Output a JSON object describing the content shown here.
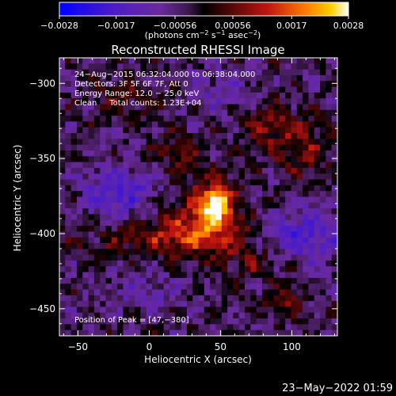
{
  "chart_data": {
    "type": "heatmap",
    "title": "Reconstructed RHESSI Image",
    "xlabel": "Heliocentric X (arcsec)",
    "ylabel": "Heliocentric Y (arcsec)",
    "xlim": [
      -63,
      132
    ],
    "ylim": [
      -468,
      -283
    ],
    "x_ticks": [
      -50,
      0,
      50,
      100
    ],
    "y_ticks": [
      -300,
      -350,
      -400,
      -450
    ],
    "x_tick_labels": [
      "−50",
      "0",
      "50",
      "100"
    ],
    "y_tick_labels": [
      "−300",
      "−350",
      "−400",
      "−450"
    ],
    "colorbar": {
      "range": [
        -0.0028,
        0.0028
      ],
      "ticks": [
        -0.0028,
        -0.0017,
        -0.00056,
        0.00056,
        0.0017,
        0.0028
      ],
      "tick_labels": [
        "−0.0028",
        "−0.0017",
        "−0.00056",
        "0.00056",
        "0.0017",
        "0.0028"
      ],
      "unit_main": "(photons cm",
      "unit_exp1": "−2",
      "unit_mid": " s",
      "unit_exp2": "−1",
      "unit_tail": " asec",
      "unit_exp3": "−2",
      "unit_close": ")"
    },
    "annotations": [
      "24−Aug−2015 06:32:04.000 to 06:38:04.000",
      "Detectors: 3F 5F 6F 7F, Att 0",
      "Energy Range: 12.0 − 25.0 keV",
      "Clean     Total counts: 1.23E+04"
    ],
    "peak_label": "Position of Peak = [47,−380]",
    "peak": {
      "x": 47,
      "y": -380,
      "value": 0.0028
    },
    "features": [
      {
        "kind": "peak",
        "x": 47,
        "y": -380,
        "sx": 6,
        "sy": 7,
        "value": 0.0028
      },
      {
        "kind": "halo",
        "x": 42,
        "y": -385,
        "sx": 16,
        "sy": 16,
        "value": 0.0014
      },
      {
        "kind": "ridge",
        "x": 30,
        "y": -398,
        "sx": 28,
        "sy": 9,
        "value": 0.0009
      },
      {
        "kind": "ridge",
        "x": 5,
        "y": -405,
        "sx": 40,
        "sy": 8,
        "value": 0.0007
      },
      {
        "kind": "ridge",
        "x": 20,
        "y": -345,
        "sx": 12,
        "sy": 10,
        "value": 0.0008
      },
      {
        "kind": "ridge",
        "x": 85,
        "y": -330,
        "sx": 14,
        "sy": 12,
        "value": 0.001
      },
      {
        "kind": "ridge",
        "x": 110,
        "y": -345,
        "sx": 12,
        "sy": 14,
        "value": 0.0009
      },
      {
        "kind": "ridge",
        "x": 75,
        "y": -420,
        "sx": 18,
        "sy": 8,
        "value": 0.0008
      },
      {
        "kind": "ridge",
        "x": -20,
        "y": -310,
        "sx": 18,
        "sy": 10,
        "value": 0.0006
      },
      {
        "kind": "ridge",
        "x": 95,
        "y": -445,
        "sx": 12,
        "sy": 6,
        "value": 0.0009
      },
      {
        "kind": "trough",
        "x": -20,
        "y": -372,
        "sx": 18,
        "sy": 12,
        "value": -0.0012
      },
      {
        "kind": "trough",
        "x": 108,
        "y": -402,
        "sx": 20,
        "sy": 14,
        "value": -0.0013
      },
      {
        "kind": "trough",
        "x": 50,
        "y": -305,
        "sx": 18,
        "sy": 10,
        "value": -0.0007
      },
      {
        "kind": "trough",
        "x": -5,
        "y": -440,
        "sx": 20,
        "sy": 10,
        "value": -0.0006
      }
    ]
  },
  "footer": {
    "timestamp": "23−May−2022 01:59"
  }
}
